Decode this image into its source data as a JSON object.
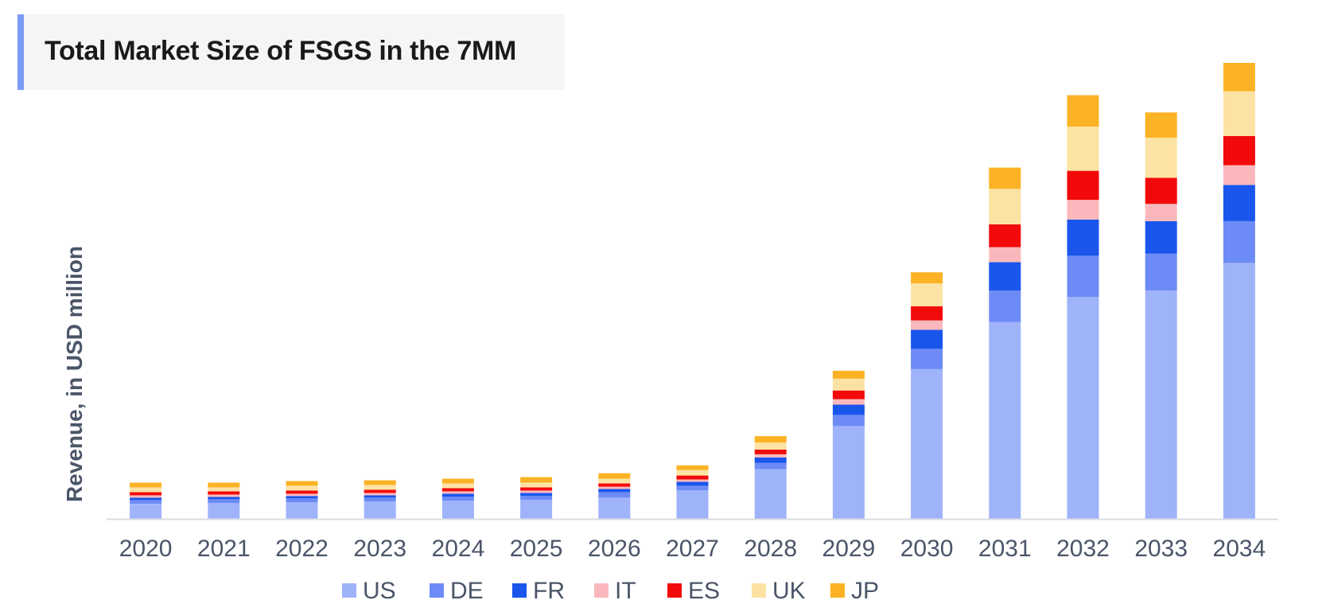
{
  "header": {
    "title": "Total Market Size of FSGS in the 7MM"
  },
  "chart_data": {
    "type": "bar",
    "stacked": true,
    "title": "Total Market Size of FSGS in the 7MM",
    "xlabel": "",
    "ylabel": "Revenue, in USD million",
    "ylim": [
      0,
      580
    ],
    "grid": false,
    "legend_position": "bottom-center",
    "categories": [
      "2020",
      "2021",
      "2022",
      "2023",
      "2024",
      "2025",
      "2026",
      "2027",
      "2028",
      "2029",
      "2030",
      "2031",
      "2032",
      "2033",
      "2034"
    ],
    "series": [
      {
        "name": "US",
        "color": "#9fb3fb",
        "values": [
          19,
          20,
          21,
          22,
          23,
          24,
          27,
          36,
          63,
          118,
          190,
          250,
          282,
          290,
          325
        ]
      },
      {
        "name": "DE",
        "color": "#6d8bf6",
        "values": [
          5,
          5,
          5,
          5,
          5,
          5,
          7,
          6,
          8,
          14,
          26,
          40,
          52,
          47,
          53
        ]
      },
      {
        "name": "FR",
        "color": "#1a56ec",
        "values": [
          3,
          3,
          3,
          3,
          4,
          4,
          4,
          5,
          7,
          13,
          24,
          36,
          46,
          41,
          46
        ]
      },
      {
        "name": "IT",
        "color": "#fbb8bc",
        "values": [
          3,
          3,
          3,
          3,
          3,
          3,
          3,
          3,
          4,
          7,
          12,
          19,
          25,
          22,
          25
        ]
      },
      {
        "name": "ES",
        "color": "#f20a0a",
        "values": [
          4,
          4,
          4,
          4,
          4,
          4,
          4,
          5,
          6,
          11,
          18,
          29,
          37,
          33,
          37
        ]
      },
      {
        "name": "UK",
        "color": "#fde3a3",
        "values": [
          6,
          5,
          6,
          6,
          6,
          6,
          6,
          7,
          9,
          15,
          29,
          45,
          56,
          51,
          57
        ]
      },
      {
        "name": "JP",
        "color": "#fbb224",
        "values": [
          6,
          6,
          6,
          6,
          6,
          7,
          7,
          6,
          8,
          10,
          14,
          27,
          40,
          32,
          36
        ]
      }
    ]
  }
}
